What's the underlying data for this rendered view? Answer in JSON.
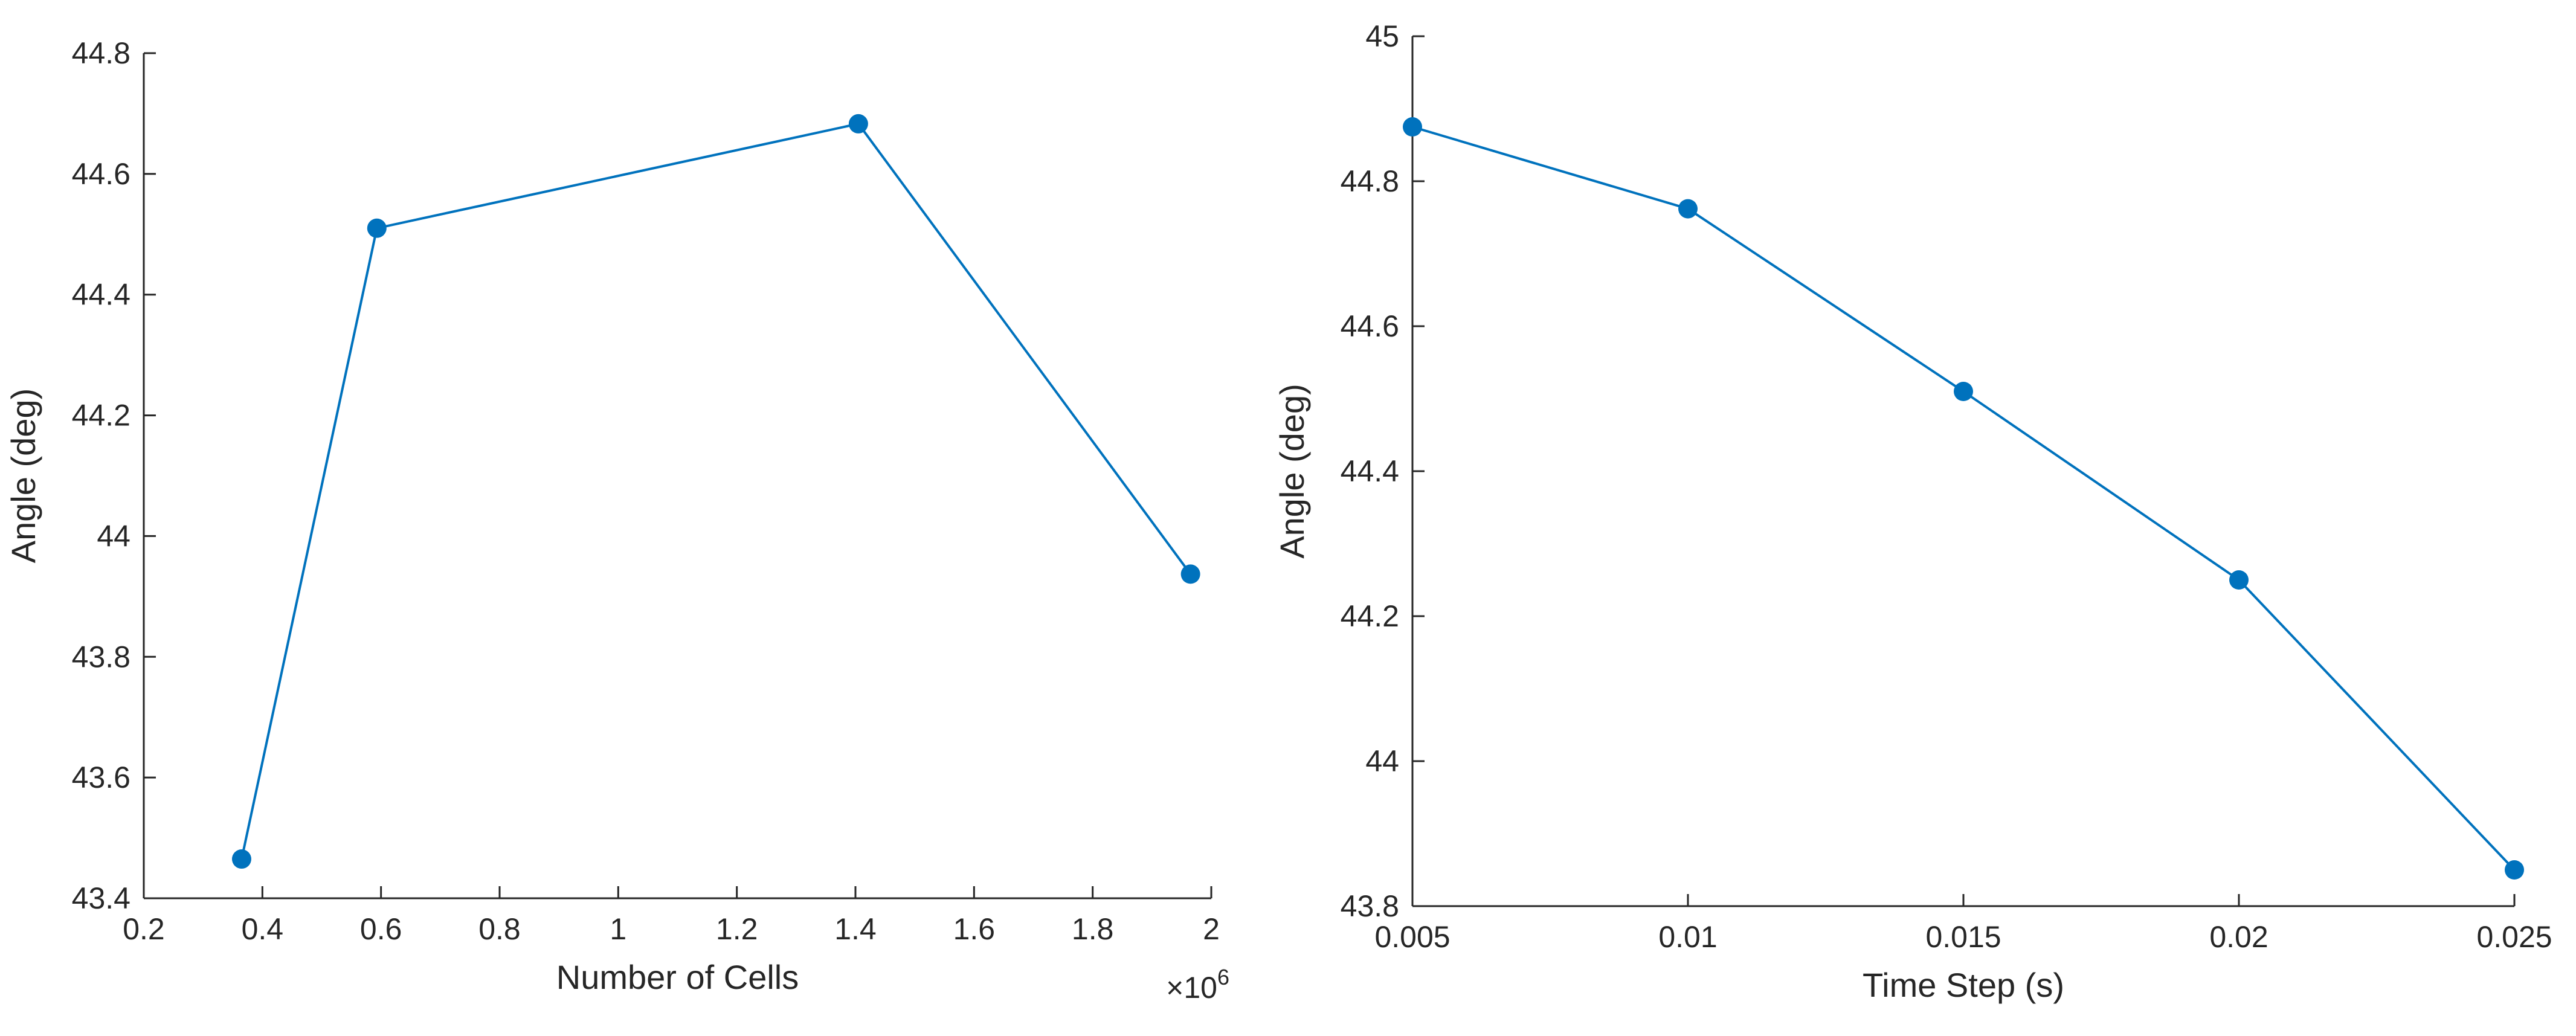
{
  "chart_data": [
    {
      "type": "line",
      "xlabel": "Number of Cells",
      "ylabel": "Angle (deg)",
      "x_multiplier": "×10",
      "x_multiplier_exp": "6",
      "xlim": [
        0.2,
        2.0
      ],
      "ylim": [
        43.4,
        44.8
      ],
      "xticks": [
        0.2,
        0.4,
        0.6,
        0.8,
        1.0,
        1.2,
        1.4,
        1.6,
        1.8,
        2.0
      ],
      "xtick_labels": [
        "0.2",
        "0.4",
        "0.6",
        "0.8",
        "1",
        "1.2",
        "1.4",
        "1.6",
        "1.8",
        "2"
      ],
      "yticks": [
        43.4,
        43.6,
        43.8,
        44.0,
        44.2,
        44.4,
        44.6,
        44.8
      ],
      "ytick_labels": [
        "43.4",
        "43.6",
        "43.8",
        "44",
        "44.2",
        "44.4",
        "44.6",
        "44.8"
      ],
      "grid": false,
      "color": "#0072BD",
      "series": [
        {
          "x": [
            0.365,
            0.593,
            1.405,
            1.965
          ],
          "y": [
            43.465,
            44.51,
            44.683,
            43.937
          ]
        }
      ]
    },
    {
      "type": "line",
      "xlabel": "Time Step (s)",
      "ylabel": "Angle (deg)",
      "xlim": [
        0.005,
        0.025
      ],
      "ylim": [
        43.8,
        45.0
      ],
      "xticks": [
        0.005,
        0.01,
        0.015,
        0.02,
        0.025
      ],
      "xtick_labels": [
        "0.005",
        "0.01",
        "0.015",
        "0.02",
        "0.025"
      ],
      "yticks": [
        43.8,
        44.0,
        44.2,
        44.4,
        44.6,
        44.8,
        45.0
      ],
      "ytick_labels": [
        "43.8",
        "44",
        "44.2",
        "44.4",
        "44.6",
        "44.8",
        "45"
      ],
      "grid": false,
      "color": "#0072BD",
      "series": [
        {
          "x": [
            0.005,
            0.01,
            0.015,
            0.02,
            0.025
          ],
          "y": [
            44.875,
            44.762,
            44.51,
            44.25,
            43.85
          ]
        }
      ]
    }
  ]
}
